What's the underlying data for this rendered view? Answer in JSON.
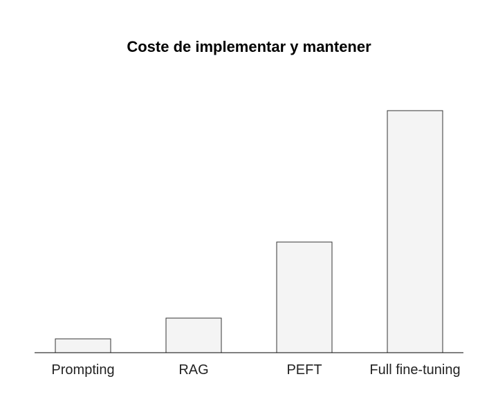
{
  "chart_data": {
    "type": "bar",
    "title": "Coste de implementar y mantener",
    "xlabel": "",
    "ylabel": "",
    "categories": [
      "Prompting",
      "RAG",
      "PEFT",
      "Full fine-tuning"
    ],
    "values": [
      2,
      5,
      16,
      35
    ],
    "ylim": [
      0,
      38
    ],
    "grid": false,
    "y_axis_visible": false,
    "colors": {
      "bar_fill": "#f4f4f4",
      "bar_stroke": "#333333",
      "axis": "#000000",
      "text": "#222222"
    }
  }
}
